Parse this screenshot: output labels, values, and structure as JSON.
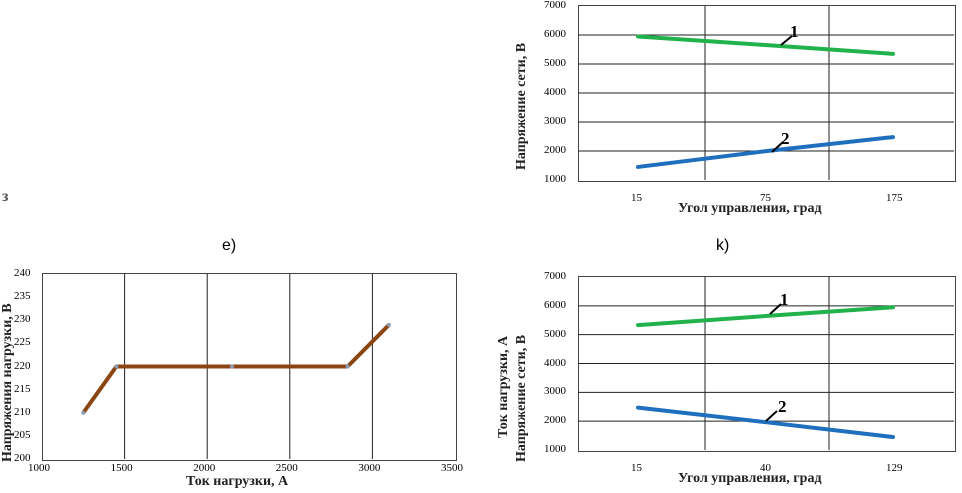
{
  "panel_labels": {
    "left": "е)",
    "right": "k)"
  },
  "artifact_text": "з",
  "chart_data": [
    {
      "id": "top_right",
      "type": "line",
      "title": "",
      "xlabel": "Угол управления, град",
      "ylabel": "Напряжение сети, В",
      "categories": [
        "15",
        "75",
        "175"
      ],
      "ylim": [
        1000,
        7000
      ],
      "yticks": [
        1000,
        2000,
        3000,
        4000,
        5000,
        6000,
        7000
      ],
      "series": [
        {
          "name": "1",
          "color": "#22b24c",
          "values": [
            5950,
            5650,
            5350
          ]
        },
        {
          "name": "2",
          "color": "#1f6fbf",
          "values": [
            1450,
            2000,
            2480
          ]
        }
      ]
    },
    {
      "id": "bottom_left",
      "type": "line",
      "title": "",
      "xlabel": "Ток нагрузки, А",
      "ylabel": "Напряжения нагрузки, В",
      "xlim": [
        1000,
        3500
      ],
      "xticks": [
        1000,
        1500,
        2000,
        2500,
        3000,
        3500
      ],
      "ylim": [
        200,
        240
      ],
      "yticks": [
        200,
        205,
        210,
        215,
        220,
        225,
        230,
        235,
        240
      ],
      "series": [
        {
          "name": "",
          "color": "#8b4513",
          "points": [
            [
              1250,
              210
            ],
            [
              1450,
              220
            ],
            [
              2150,
              220
            ],
            [
              2850,
              220
            ],
            [
              3100,
              229
            ]
          ]
        }
      ]
    },
    {
      "id": "bottom_right",
      "type": "line",
      "title": "",
      "xlabel": "Угол управления, град",
      "ylabel": "Ток нагрузки, А",
      "ylabel2": "Напряжение сети, В",
      "categories": [
        "15",
        "40",
        "129"
      ],
      "ylim": [
        1000,
        7000
      ],
      "yticks": [
        1000,
        2000,
        3000,
        4000,
        5000,
        6000,
        7000
      ],
      "series": [
        {
          "name": "1",
          "color": "#22b24c",
          "values": [
            5330,
            5650,
            5950
          ]
        },
        {
          "name": "2",
          "color": "#1f6fbf",
          "values": [
            2470,
            1960,
            1450
          ]
        }
      ]
    }
  ]
}
